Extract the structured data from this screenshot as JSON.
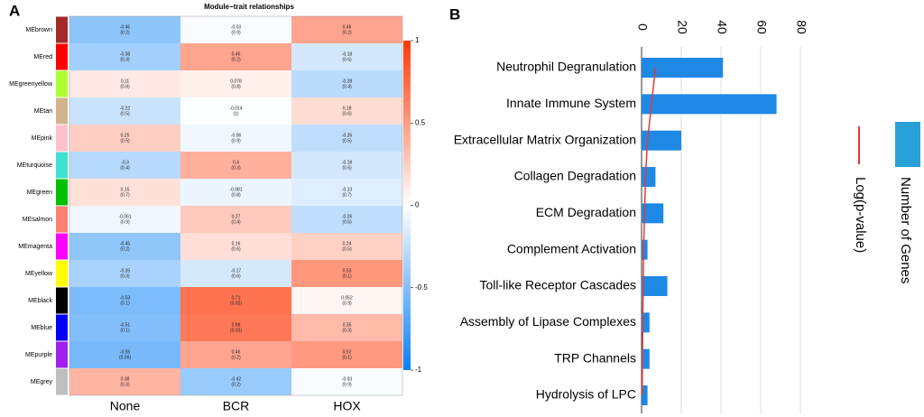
{
  "chart_data": [
    {
      "type": "heatmap",
      "panel_label": "A",
      "title": "Module−trait relationships",
      "rows": [
        "MEbrown",
        "MEred",
        "MEgreenyellow",
        "MEtan",
        "MEpink",
        "MEturquoise",
        "MEgreen",
        "MEsalmon",
        "MEmagenta",
        "MEyellow",
        "MEblack",
        "MEblue",
        "MEpurple",
        "MEgrey"
      ],
      "row_colors": [
        "#a52a2a",
        "#ff0000",
        "#adff2f",
        "#d2b48c",
        "#ffc0cb",
        "#40e0d0",
        "#00c000",
        "#fa8072",
        "#ff00ff",
        "#ffff00",
        "#000000",
        "#0000ff",
        "#a020f0",
        "#bebebe"
      ],
      "columns": [
        "None",
        "BCR",
        "HOX"
      ],
      "values": [
        [
          -0.46,
          -0.03,
          0.46
        ],
        [
          -0.38,
          0.46,
          -0.18
        ],
        [
          0.11,
          0.078,
          -0.28
        ],
        [
          -0.22,
          -0.014,
          0.18
        ],
        [
          0.25,
          -0.06,
          -0.26
        ],
        [
          -0.3,
          0.4,
          -0.18
        ],
        [
          0.15,
          -0.081,
          -0.13
        ],
        [
          -0.061,
          0.27,
          -0.26
        ],
        [
          -0.45,
          0.16,
          0.24
        ],
        [
          -0.35,
          -0.17,
          0.53
        ],
        [
          -0.53,
          0.71,
          0.052
        ],
        [
          -0.51,
          0.68,
          0.35
        ],
        [
          -0.55,
          0.46,
          0.52
        ],
        [
          0.38,
          -0.42,
          -0.03
        ]
      ],
      "pvalue_labels": [
        [
          "(0.2)",
          "(0.9)",
          "(0.2)"
        ],
        [
          "(0.3)",
          "(0.2)",
          "(0.6)"
        ],
        [
          "(0.8)",
          "(0.8)",
          "(0.4)"
        ],
        [
          "(0.5)",
          "(1)",
          "(0.6)"
        ],
        [
          "(0.5)",
          "(0.9)",
          "(0.5)"
        ],
        [
          "(0.4)",
          "(0.3)",
          "(0.6)"
        ],
        [
          "(0.7)",
          "(0.8)",
          "(0.7)"
        ],
        [
          "(0.9)",
          "(0.4)",
          "(0.5)"
        ],
        [
          "(0.2)",
          "(0.6)",
          "(0.5)"
        ],
        [
          "(0.3)",
          "(0.6)",
          "(0.1)"
        ],
        [
          "(0.1)",
          "(0.02)",
          "(0.9)"
        ],
        [
          "(0.1)",
          "(0.03)",
          "(0.3)"
        ],
        [
          "(0.09)",
          "(0.2)",
          "(0.1)"
        ],
        [
          "(0.3)",
          "(0.2)",
          "(0.9)"
        ]
      ],
      "zlim": [
        -1,
        1
      ],
      "zticks": [
        1,
        0.5,
        0,
        -0.5,
        -1
      ],
      "colors": [
        "#0a80f5",
        "#ffffff",
        "#ff3a0a"
      ]
    },
    {
      "type": "bar",
      "orientation": "horizontal",
      "panel_label": "B",
      "categories": [
        "Neutrophil Degranulation",
        "Innate Immune System",
        "Extracellular Matrix Organization",
        "Collagen Degradation",
        "ECM Degradation",
        "Complement Activation",
        "Toll-like Receptor Cascades",
        "Assembly of Lipase Complexes",
        "TRP Channels",
        "Hydrolysis of LPC"
      ],
      "series": [
        {
          "name": "Number of Genes",
          "color": "#1e88e5",
          "values": [
            41,
            68,
            20,
            7,
            11,
            3,
            13,
            4,
            4,
            3
          ]
        },
        {
          "name": "Log(p-value)",
          "color": "#e53935",
          "values": [
            7,
            5,
            3,
            2,
            1.5,
            1,
            0.8,
            0.6,
            0.4,
            0.3
          ]
        }
      ],
      "xlim": [
        0,
        80
      ],
      "xticks": [
        0,
        20,
        40,
        60,
        80
      ],
      "grid": true,
      "legend": "right"
    }
  ]
}
